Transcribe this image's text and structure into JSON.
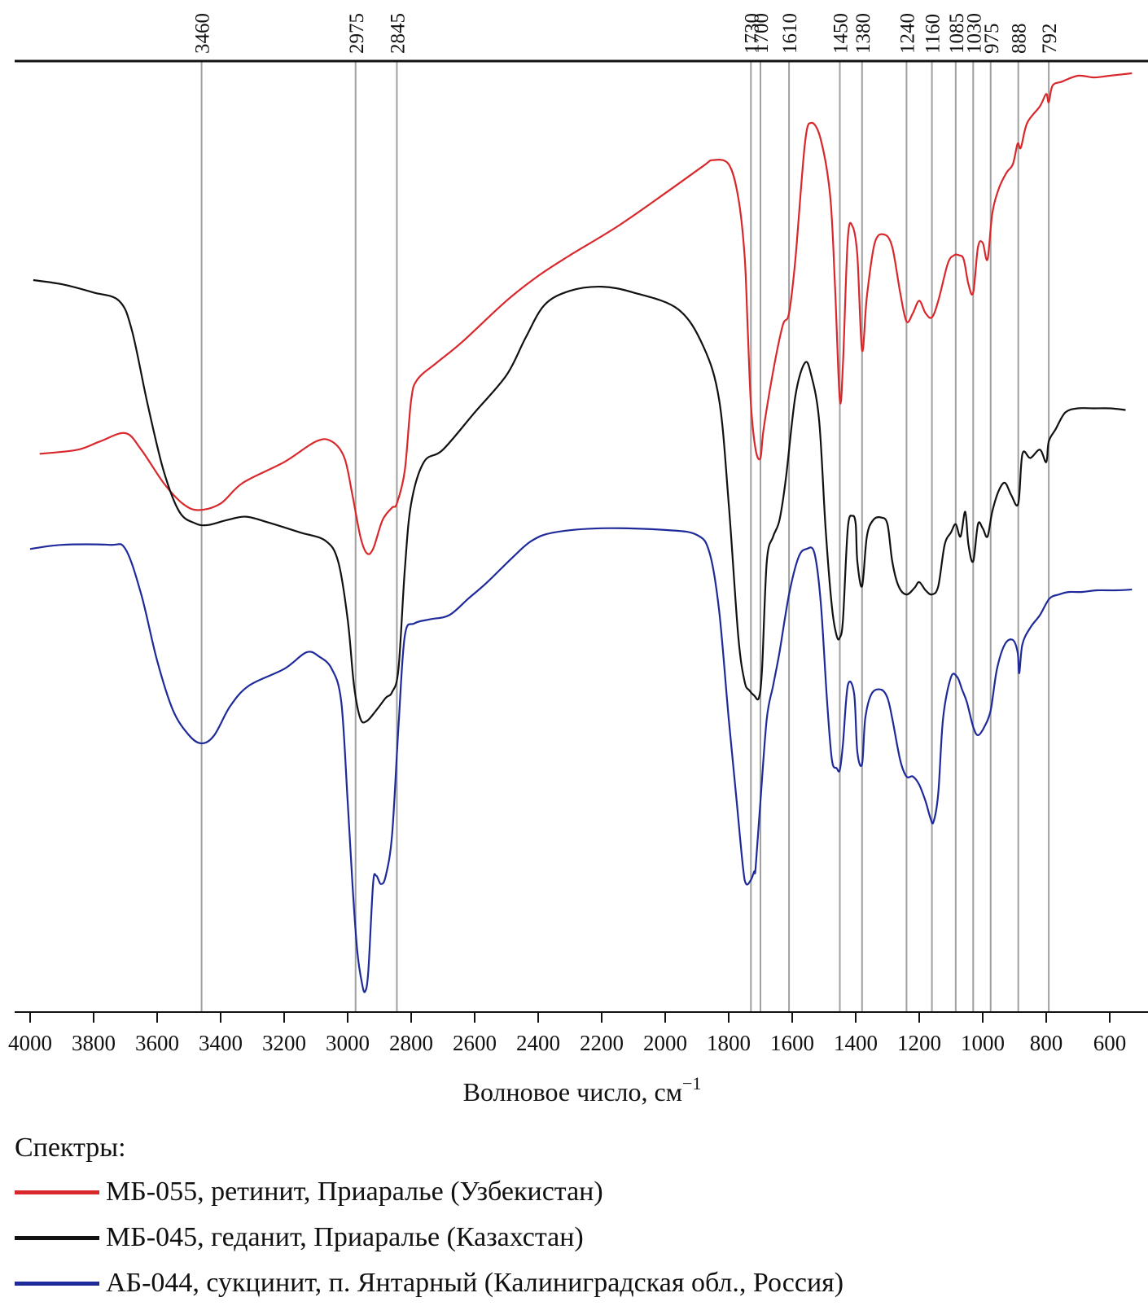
{
  "chart_data": {
    "type": "line",
    "title": "",
    "xlabel": "Волновое число, см",
    "xlabel_sup": "−1",
    "ylabel": "",
    "xlim": [
      4020,
      530
    ],
    "x_reversed": true,
    "x_ticks": [
      4000,
      3800,
      3600,
      3400,
      3200,
      3000,
      2800,
      2600,
      2400,
      2200,
      2000,
      1800,
      1600,
      1400,
      1200,
      1000,
      800,
      600
    ],
    "peak_markers": [
      3460,
      2975,
      2845,
      1730,
      1700,
      1610,
      1450,
      1380,
      1240,
      1160,
      1085,
      1030,
      975,
      888,
      792
    ],
    "grid": false,
    "legend_position": "bottom",
    "series": [
      {
        "name": "МБ-055, ретинит, Приаралье (Узбекистан)",
        "color": "#d8282c",
        "points": [
          [
            3970,
            0.36
          ],
          [
            3850,
            0.355
          ],
          [
            3780,
            0.345
          ],
          [
            3700,
            0.335
          ],
          [
            3650,
            0.355
          ],
          [
            3580,
            0.395
          ],
          [
            3520,
            0.42
          ],
          [
            3470,
            0.428
          ],
          [
            3400,
            0.42
          ],
          [
            3330,
            0.395
          ],
          [
            3200,
            0.37
          ],
          [
            3100,
            0.345
          ],
          [
            3050,
            0.345
          ],
          [
            3010,
            0.365
          ],
          [
            2985,
            0.41
          ],
          [
            2960,
            0.46
          ],
          [
            2940,
            0.48
          ],
          [
            2920,
            0.475
          ],
          [
            2890,
            0.44
          ],
          [
            2860,
            0.425
          ],
          [
            2845,
            0.42
          ],
          [
            2820,
            0.38
          ],
          [
            2800,
            0.295
          ],
          [
            2780,
            0.27
          ],
          [
            2720,
            0.25
          ],
          [
            2640,
            0.225
          ],
          [
            2500,
            0.175
          ],
          [
            2400,
            0.145
          ],
          [
            2300,
            0.12
          ],
          [
            2150,
            0.085
          ],
          [
            2000,
            0.045
          ],
          [
            1880,
            0.012
          ],
          [
            1850,
            0.005
          ],
          [
            1800,
            0.01
          ],
          [
            1770,
            0.05
          ],
          [
            1750,
            0.12
          ],
          [
            1740,
            0.21
          ],
          [
            1730,
            0.3
          ],
          [
            1715,
            0.355
          ],
          [
            1700,
            0.365
          ],
          [
            1690,
            0.33
          ],
          [
            1660,
            0.26
          ],
          [
            1630,
            0.205
          ],
          [
            1610,
            0.19
          ],
          [
            1590,
            0.125
          ],
          [
            1560,
            -0.015
          ],
          [
            1540,
            -0.04
          ],
          [
            1510,
            -0.02
          ],
          [
            1480,
            0.05
          ],
          [
            1465,
            0.16
          ],
          [
            1450,
            0.295
          ],
          [
            1440,
            0.25
          ],
          [
            1425,
            0.1
          ],
          [
            1410,
            0.085
          ],
          [
            1395,
            0.12
          ],
          [
            1380,
            0.235
          ],
          [
            1365,
            0.17
          ],
          [
            1340,
            0.105
          ],
          [
            1310,
            0.095
          ],
          [
            1285,
            0.11
          ],
          [
            1260,
            0.165
          ],
          [
            1240,
            0.2
          ],
          [
            1220,
            0.19
          ],
          [
            1200,
            0.175
          ],
          [
            1180,
            0.19
          ],
          [
            1160,
            0.195
          ],
          [
            1140,
            0.175
          ],
          [
            1110,
            0.13
          ],
          [
            1090,
            0.12
          ],
          [
            1075,
            0.12
          ],
          [
            1060,
            0.125
          ],
          [
            1045,
            0.155
          ],
          [
            1030,
            0.165
          ],
          [
            1015,
            0.11
          ],
          [
            1000,
            0.105
          ],
          [
            985,
            0.125
          ],
          [
            970,
            0.07
          ],
          [
            950,
            0.04
          ],
          [
            925,
            0.02
          ],
          [
            905,
            0.01
          ],
          [
            890,
            -0.015
          ],
          [
            880,
            -0.01
          ],
          [
            860,
            -0.04
          ],
          [
            820,
            -0.06
          ],
          [
            800,
            -0.075
          ],
          [
            792,
            -0.065
          ],
          [
            780,
            -0.085
          ],
          [
            750,
            -0.09
          ],
          [
            700,
            -0.097
          ],
          [
            650,
            -0.095
          ],
          [
            600,
            -0.097
          ],
          [
            530,
            -0.1
          ]
        ]
      },
      {
        "name": "МБ-045, геданит, Приаралье (Казахстан)",
        "color": "#111111",
        "points": [
          [
            3990,
            0.15
          ],
          [
            3900,
            0.155
          ],
          [
            3800,
            0.165
          ],
          [
            3720,
            0.175
          ],
          [
            3680,
            0.21
          ],
          [
            3630,
            0.3
          ],
          [
            3580,
            0.38
          ],
          [
            3530,
            0.43
          ],
          [
            3480,
            0.444
          ],
          [
            3440,
            0.446
          ],
          [
            3380,
            0.44
          ],
          [
            3320,
            0.436
          ],
          [
            3250,
            0.443
          ],
          [
            3150,
            0.455
          ],
          [
            3070,
            0.465
          ],
          [
            3030,
            0.49
          ],
          [
            3000,
            0.56
          ],
          [
            2980,
            0.64
          ],
          [
            2960,
            0.68
          ],
          [
            2940,
            0.683
          ],
          [
            2910,
            0.67
          ],
          [
            2880,
            0.655
          ],
          [
            2860,
            0.648
          ],
          [
            2840,
            0.62
          ],
          [
            2820,
            0.5
          ],
          [
            2800,
            0.42
          ],
          [
            2760,
            0.37
          ],
          [
            2700,
            0.355
          ],
          [
            2600,
            0.31
          ],
          [
            2500,
            0.265
          ],
          [
            2440,
            0.22
          ],
          [
            2380,
            0.18
          ],
          [
            2300,
            0.163
          ],
          [
            2200,
            0.158
          ],
          [
            2100,
            0.165
          ],
          [
            1960,
            0.185
          ],
          [
            1880,
            0.23
          ],
          [
            1830,
            0.295
          ],
          [
            1800,
            0.42
          ],
          [
            1770,
            0.58
          ],
          [
            1750,
            0.635
          ],
          [
            1735,
            0.646
          ],
          [
            1720,
            0.652
          ],
          [
            1705,
            0.655
          ],
          [
            1695,
            0.62
          ],
          [
            1680,
            0.49
          ],
          [
            1660,
            0.46
          ],
          [
            1640,
            0.44
          ],
          [
            1620,
            0.39
          ],
          [
            1590,
            0.29
          ],
          [
            1560,
            0.25
          ],
          [
            1540,
            0.265
          ],
          [
            1515,
            0.32
          ],
          [
            1495,
            0.45
          ],
          [
            1475,
            0.545
          ],
          [
            1460,
            0.58
          ],
          [
            1450,
            0.582
          ],
          [
            1440,
            0.56
          ],
          [
            1425,
            0.45
          ],
          [
            1410,
            0.435
          ],
          [
            1400,
            0.445
          ],
          [
            1395,
            0.49
          ],
          [
            1380,
            0.52
          ],
          [
            1365,
            0.46
          ],
          [
            1345,
            0.44
          ],
          [
            1320,
            0.437
          ],
          [
            1300,
            0.445
          ],
          [
            1285,
            0.49
          ],
          [
            1265,
            0.52
          ],
          [
            1240,
            0.53
          ],
          [
            1215,
            0.522
          ],
          [
            1200,
            0.515
          ],
          [
            1180,
            0.525
          ],
          [
            1160,
            0.53
          ],
          [
            1140,
            0.52
          ],
          [
            1120,
            0.47
          ],
          [
            1100,
            0.455
          ],
          [
            1085,
            0.445
          ],
          [
            1070,
            0.46
          ],
          [
            1055,
            0.43
          ],
          [
            1045,
            0.47
          ],
          [
            1030,
            0.49
          ],
          [
            1015,
            0.445
          ],
          [
            1000,
            0.45
          ],
          [
            985,
            0.46
          ],
          [
            970,
            0.43
          ],
          [
            950,
            0.405
          ],
          [
            930,
            0.395
          ],
          [
            910,
            0.41
          ],
          [
            888,
            0.42
          ],
          [
            875,
            0.36
          ],
          [
            850,
            0.365
          ],
          [
            820,
            0.355
          ],
          [
            800,
            0.37
          ],
          [
            792,
            0.345
          ],
          [
            770,
            0.33
          ],
          [
            740,
            0.31
          ],
          [
            700,
            0.305
          ],
          [
            650,
            0.305
          ],
          [
            600,
            0.305
          ],
          [
            550,
            0.307
          ]
        ]
      },
      {
        "name": "АБ-044, сукцинит, п. Янтарный (Калиниградская обл., Россия)",
        "color": "#1f2a9a",
        "points": [
          [
            4000,
            0.475
          ],
          [
            3900,
            0.47
          ],
          [
            3750,
            0.47
          ],
          [
            3700,
            0.475
          ],
          [
            3650,
            0.53
          ],
          [
            3600,
            0.61
          ],
          [
            3550,
            0.67
          ],
          [
            3500,
            0.7
          ],
          [
            3460,
            0.71
          ],
          [
            3420,
            0.7
          ],
          [
            3370,
            0.665
          ],
          [
            3310,
            0.64
          ],
          [
            3200,
            0.62
          ],
          [
            3130,
            0.6
          ],
          [
            3090,
            0.605
          ],
          [
            3050,
            0.62
          ],
          [
            3020,
            0.66
          ],
          [
            3000,
            0.78
          ],
          [
            2985,
            0.88
          ],
          [
            2970,
            0.96
          ],
          [
            2955,
            1.0
          ],
          [
            2945,
            1.01
          ],
          [
            2935,
            0.985
          ],
          [
            2920,
            0.88
          ],
          [
            2910,
            0.87
          ],
          [
            2895,
            0.88
          ],
          [
            2880,
            0.87
          ],
          [
            2860,
            0.82
          ],
          [
            2840,
            0.69
          ],
          [
            2820,
            0.58
          ],
          [
            2790,
            0.565
          ],
          [
            2740,
            0.56
          ],
          [
            2680,
            0.555
          ],
          [
            2620,
            0.535
          ],
          [
            2560,
            0.515
          ],
          [
            2480,
            0.485
          ],
          [
            2420,
            0.465
          ],
          [
            2350,
            0.455
          ],
          [
            2200,
            0.45
          ],
          [
            2000,
            0.452
          ],
          [
            1900,
            0.458
          ],
          [
            1860,
            0.48
          ],
          [
            1830,
            0.55
          ],
          [
            1800,
            0.68
          ],
          [
            1775,
            0.78
          ],
          [
            1755,
            0.86
          ],
          [
            1745,
            0.88
          ],
          [
            1730,
            0.875
          ],
          [
            1720,
            0.865
          ],
          [
            1715,
            0.86
          ],
          [
            1700,
            0.78
          ],
          [
            1680,
            0.68
          ],
          [
            1660,
            0.64
          ],
          [
            1640,
            0.6
          ],
          [
            1610,
            0.53
          ],
          [
            1580,
            0.485
          ],
          [
            1555,
            0.475
          ],
          [
            1530,
            0.48
          ],
          [
            1510,
            0.54
          ],
          [
            1490,
            0.66
          ],
          [
            1475,
            0.73
          ],
          [
            1460,
            0.74
          ],
          [
            1450,
            0.742
          ],
          [
            1440,
            0.71
          ],
          [
            1425,
            0.64
          ],
          [
            1405,
            0.65
          ],
          [
            1395,
            0.72
          ],
          [
            1380,
            0.735
          ],
          [
            1370,
            0.68
          ],
          [
            1350,
            0.65
          ],
          [
            1320,
            0.645
          ],
          [
            1300,
            0.655
          ],
          [
            1285,
            0.68
          ],
          [
            1260,
            0.73
          ],
          [
            1240,
            0.75
          ],
          [
            1220,
            0.75
          ],
          [
            1200,
            0.76
          ],
          [
            1180,
            0.78
          ],
          [
            1165,
            0.8
          ],
          [
            1155,
            0.805
          ],
          [
            1140,
            0.77
          ],
          [
            1125,
            0.68
          ],
          [
            1100,
            0.63
          ],
          [
            1080,
            0.63
          ],
          [
            1065,
            0.645
          ],
          [
            1050,
            0.66
          ],
          [
            1030,
            0.69
          ],
          [
            1015,
            0.7
          ],
          [
            995,
            0.69
          ],
          [
            975,
            0.67
          ],
          [
            955,
            0.62
          ],
          [
            930,
            0.59
          ],
          [
            905,
            0.585
          ],
          [
            890,
            0.6
          ],
          [
            885,
            0.625
          ],
          [
            875,
            0.59
          ],
          [
            850,
            0.57
          ],
          [
            820,
            0.555
          ],
          [
            790,
            0.535
          ],
          [
            760,
            0.53
          ],
          [
            730,
            0.527
          ],
          [
            690,
            0.527
          ],
          [
            640,
            0.525
          ],
          [
            580,
            0.525
          ],
          [
            530,
            0.524
          ]
        ]
      }
    ]
  },
  "legend": {
    "title": "Спектры:",
    "items": [
      {
        "label": "МБ-055, ретинит, Приаралье (Узбекистан)",
        "color": "#d8282c"
      },
      {
        "label": "МБ-045, геданит, Приаралье (Казахстан)",
        "color": "#111111"
      },
      {
        "label": "АБ-044, сукцинит, п. Янтарный (Калиниградская обл., Россия)",
        "color": "#1f2a9a"
      }
    ]
  }
}
